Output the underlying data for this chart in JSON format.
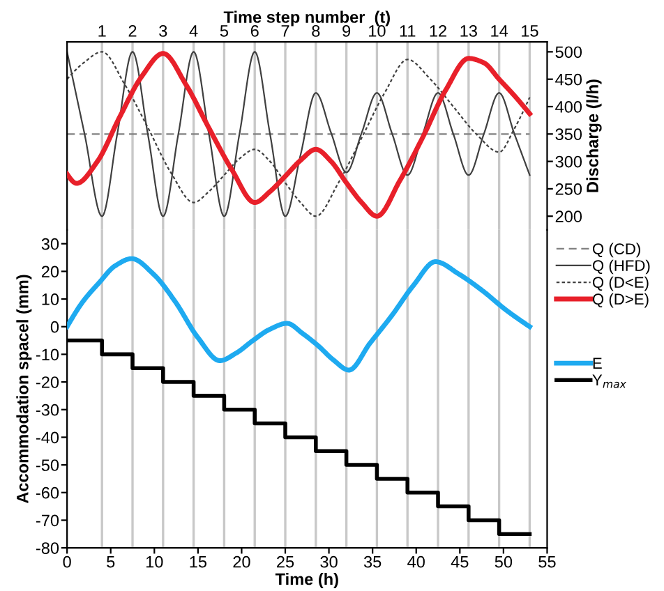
{
  "chart_data": [
    {
      "type": "line",
      "xlabel": "Time step number  (t)",
      "ylabel": "Discharge (l/h)",
      "xlim": [
        -0.143,
        15.571
      ],
      "xticks": [
        1,
        2,
        3,
        4,
        5,
        6,
        7,
        8,
        9,
        10,
        11,
        12,
        13,
        14,
        15
      ],
      "ylim": [
        175,
        518
      ],
      "yticks": [
        200,
        250,
        300,
        350,
        400,
        450,
        500
      ],
      "grid": "x",
      "legend": "bottom right",
      "series": [
        {
          "name": "Q (CD)",
          "color": "#808080",
          "line_style": "dashed",
          "x": [
            -0.143,
            15
          ],
          "values": [
            350,
            350
          ]
        },
        {
          "name": "Q (HFD)",
          "color": "#404040",
          "line_style": "solid",
          "x": [
            -0.143,
            0.43,
            1,
            1.5,
            2,
            2.5,
            3,
            3.5,
            4,
            4.5,
            5,
            5.5,
            6,
            6.5,
            7,
            7.5,
            8,
            8.5,
            9,
            9.5,
            10,
            10.5,
            11,
            11.5,
            12,
            12.5,
            13,
            13.5,
            14,
            14.5,
            15
          ],
          "values": [
            500,
            350,
            200,
            350,
            500,
            350,
            200,
            350,
            500,
            350,
            200,
            350,
            500,
            350,
            200,
            312,
            425,
            352,
            280,
            352,
            425,
            350,
            275,
            350,
            425,
            350,
            275,
            350,
            425,
            350,
            275
          ]
        },
        {
          "name": "Q (D<E)",
          "color": "#404040",
          "line_style": "dotted",
          "x": [
            -0.143,
            0.4,
            1,
            1.75,
            2.5,
            3.25,
            4,
            4.5,
            5,
            5.5,
            6,
            6.5,
            7,
            7.5,
            8,
            8.75,
            9.5,
            10.25,
            11,
            11.75,
            12.5,
            13.25,
            14,
            14.5,
            15
          ],
          "values": [
            450,
            480,
            500,
            440,
            362,
            280,
            225,
            245,
            275,
            305,
            322,
            300,
            261,
            225,
            200,
            262,
            343,
            425,
            486,
            450,
            400,
            350,
            317,
            360,
            417
          ]
        },
        {
          "name": "Q (D>E)",
          "color": "#e8202a",
          "line_style": "solid",
          "x": [
            -0.143,
            0.17,
            0.85,
            1.57,
            2.3,
            3,
            3.75,
            4.5,
            5.25,
            6,
            6.5,
            7,
            7.5,
            8,
            8.5,
            9,
            9.5,
            10,
            10.75,
            11.5,
            12.25,
            13,
            13.5,
            14,
            14.5,
            15
          ],
          "values": [
            277,
            260,
            300,
            380,
            455,
            497,
            440,
            361,
            285,
            225,
            245,
            273,
            302,
            322,
            300,
            261,
            225,
            200,
            265,
            344,
            430,
            488,
            480,
            450,
            420,
            387
          ]
        }
      ]
    },
    {
      "type": "line",
      "xlabel": "Time (h)",
      "ylabel": "Accommodation spacel (mm)",
      "xlim": [
        0,
        55
      ],
      "xticks": [
        0,
        5,
        10,
        15,
        20,
        25,
        30,
        35,
        40,
        45,
        50,
        55
      ],
      "ylim": [
        -80,
        35
      ],
      "yticks": [
        -80,
        -70,
        -60,
        -50,
        -40,
        -30,
        -20,
        -10,
        0,
        10,
        20,
        30
      ],
      "legend": "right",
      "ref_lines": [
        {
          "axis": "x",
          "value": 4.0
        },
        {
          "axis": "x",
          "value": 7.5
        },
        {
          "axis": "x",
          "value": 11
        },
        {
          "axis": "x",
          "value": 14.5
        },
        {
          "axis": "x",
          "value": 18
        },
        {
          "axis": "x",
          "value": 21.5
        },
        {
          "axis": "x",
          "value": 25
        },
        {
          "axis": "x",
          "value": 28.5
        },
        {
          "axis": "x",
          "value": 32
        },
        {
          "axis": "x",
          "value": 35.5
        },
        {
          "axis": "x",
          "value": 39
        },
        {
          "axis": "x",
          "value": 42.5
        },
        {
          "axis": "x",
          "value": 46
        },
        {
          "axis": "x",
          "value": 49.5
        },
        {
          "axis": "x",
          "value": 53
        }
      ],
      "series": [
        {
          "name": "E",
          "color": "#1eaaf0",
          "x": [
            0,
            1.8,
            3.7,
            5.5,
            7.4,
            9.9,
            12.4,
            15,
            17.5,
            19.4,
            21.3,
            23.2,
            25.2,
            27,
            28.8,
            30.5,
            32.3,
            34.7,
            37.2,
            39.7,
            42.2,
            44.9,
            47.6,
            50.3,
            53.0
          ],
          "values": [
            0,
            9,
            16,
            22,
            24.6,
            19,
            9,
            -4,
            -12.3,
            -9.5,
            -5,
            -1,
            1.2,
            -2.5,
            -7,
            -12,
            -15.7,
            -6,
            4,
            15,
            23.5,
            19,
            13,
            6,
            0
          ]
        },
        {
          "name": "Y$_{max}$",
          "type": "step",
          "color": "#000000",
          "x": [
            0,
            4.0,
            7.5,
            11,
            14.5,
            18,
            21.5,
            25,
            28.5,
            32,
            35.5,
            39,
            42.5,
            46,
            49.5,
            53
          ],
          "values": [
            -5,
            -10,
            -15,
            -20,
            -25,
            -30,
            -35,
            -40,
            -45,
            -50,
            -55,
            -60,
            -65,
            -70,
            -75,
            -75
          ]
        }
      ]
    }
  ]
}
